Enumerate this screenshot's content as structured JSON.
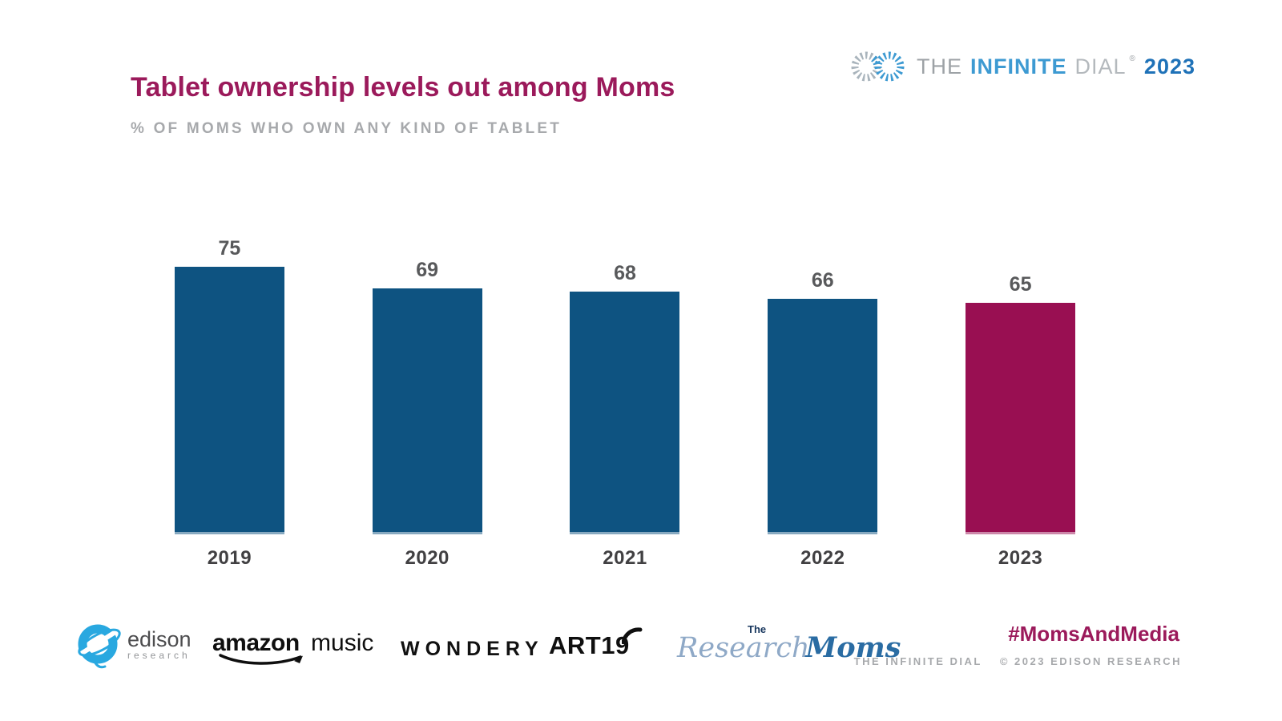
{
  "header": {
    "title": "Tablet ownership levels out among Moms",
    "title_color": "#9B1A5B",
    "subtitle": "% OF MOMS WHO OWN ANY KIND OF TABLET",
    "subtitle_color": "#A7A9AC"
  },
  "brand_logo": {
    "the": "THE",
    "infinite": "INFINITE",
    "dial": "DIAL",
    "registered": "®",
    "year": "2023",
    "blue": "#3D9AD2",
    "dark_blue": "#1F72B8",
    "gray": "#9DA2A6"
  },
  "chart_data": {
    "type": "bar",
    "title": "Tablet ownership levels out among Moms",
    "subtitle": "% OF MOMS WHO OWN ANY KIND OF TABLET",
    "categories": [
      "2019",
      "2020",
      "2021",
      "2022",
      "2023"
    ],
    "values": [
      75,
      69,
      68,
      66,
      65
    ],
    "unit": "percent of Moms",
    "bar_colors": [
      "#0E5381",
      "#0E5381",
      "#0E5381",
      "#0E5381",
      "#990F52"
    ],
    "highlight_index": 4,
    "value_label_color": "#58595B",
    "category_label_color": "#414042",
    "grid": false,
    "legend": false,
    "axis": "none",
    "baseline": 0
  },
  "footer": {
    "logos": {
      "edison": {
        "name": "edison",
        "sub": "research",
        "icon_color": "#29A8E0"
      },
      "amazon_music": {
        "bold": "amazon",
        "regular": "music"
      },
      "wondery": {
        "text": "WONDERY"
      },
      "art19": {
        "text": "ART19"
      },
      "research_moms": {
        "the": "The",
        "research": "Research",
        "moms": "Moms"
      }
    },
    "hashtag": "#MomsAndMedia",
    "hashtag_color": "#9B1A5B",
    "attribution_left": "THE INFINITE DIAL",
    "attribution_right": "© 2023 EDISON RESEARCH"
  }
}
